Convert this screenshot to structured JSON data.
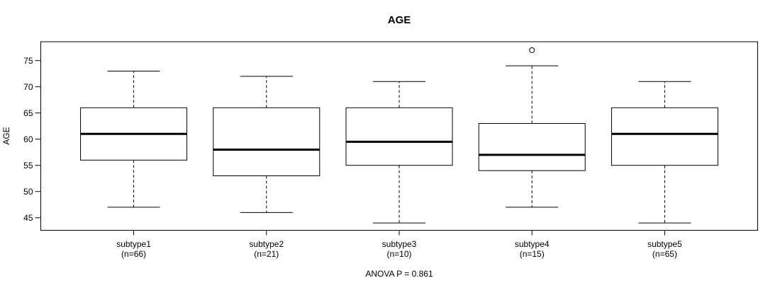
{
  "chart_data": {
    "type": "boxplot",
    "title": "AGE",
    "xlabel": "",
    "ylabel": "AGE",
    "annotation": "ANOVA P = 0.861",
    "yticks": [
      45,
      50,
      55,
      60,
      65,
      70,
      75
    ],
    "ylim": [
      42.6,
      78.6
    ],
    "grid": false,
    "legend": false,
    "colors": {
      "line": "#000000",
      "background": "#ffffff"
    },
    "groups": [
      {
        "label": "subtype1",
        "sublabel": "(n=66)",
        "n": 66,
        "whisker_low": 47,
        "q1": 56,
        "median": 61,
        "q3": 66,
        "whisker_high": 73,
        "outliers": []
      },
      {
        "label": "subtype2",
        "sublabel": "(n=21)",
        "n": 21,
        "whisker_low": 46,
        "q1": 53,
        "median": 58,
        "q3": 66,
        "whisker_high": 72,
        "outliers": []
      },
      {
        "label": "subtype3",
        "sublabel": "(n=10)",
        "n": 10,
        "whisker_low": 44,
        "q1": 55,
        "median": 59.5,
        "q3": 66,
        "whisker_high": 71,
        "outliers": []
      },
      {
        "label": "subtype4",
        "sublabel": "(n=15)",
        "n": 15,
        "whisker_low": 47,
        "q1": 54,
        "median": 57,
        "q3": 63,
        "whisker_high": 74,
        "outliers": [
          77
        ]
      },
      {
        "label": "subtype5",
        "sublabel": "(n=65)",
        "n": 65,
        "whisker_low": 44,
        "q1": 55,
        "median": 61,
        "q3": 66,
        "whisker_high": 71,
        "outliers": []
      }
    ]
  }
}
